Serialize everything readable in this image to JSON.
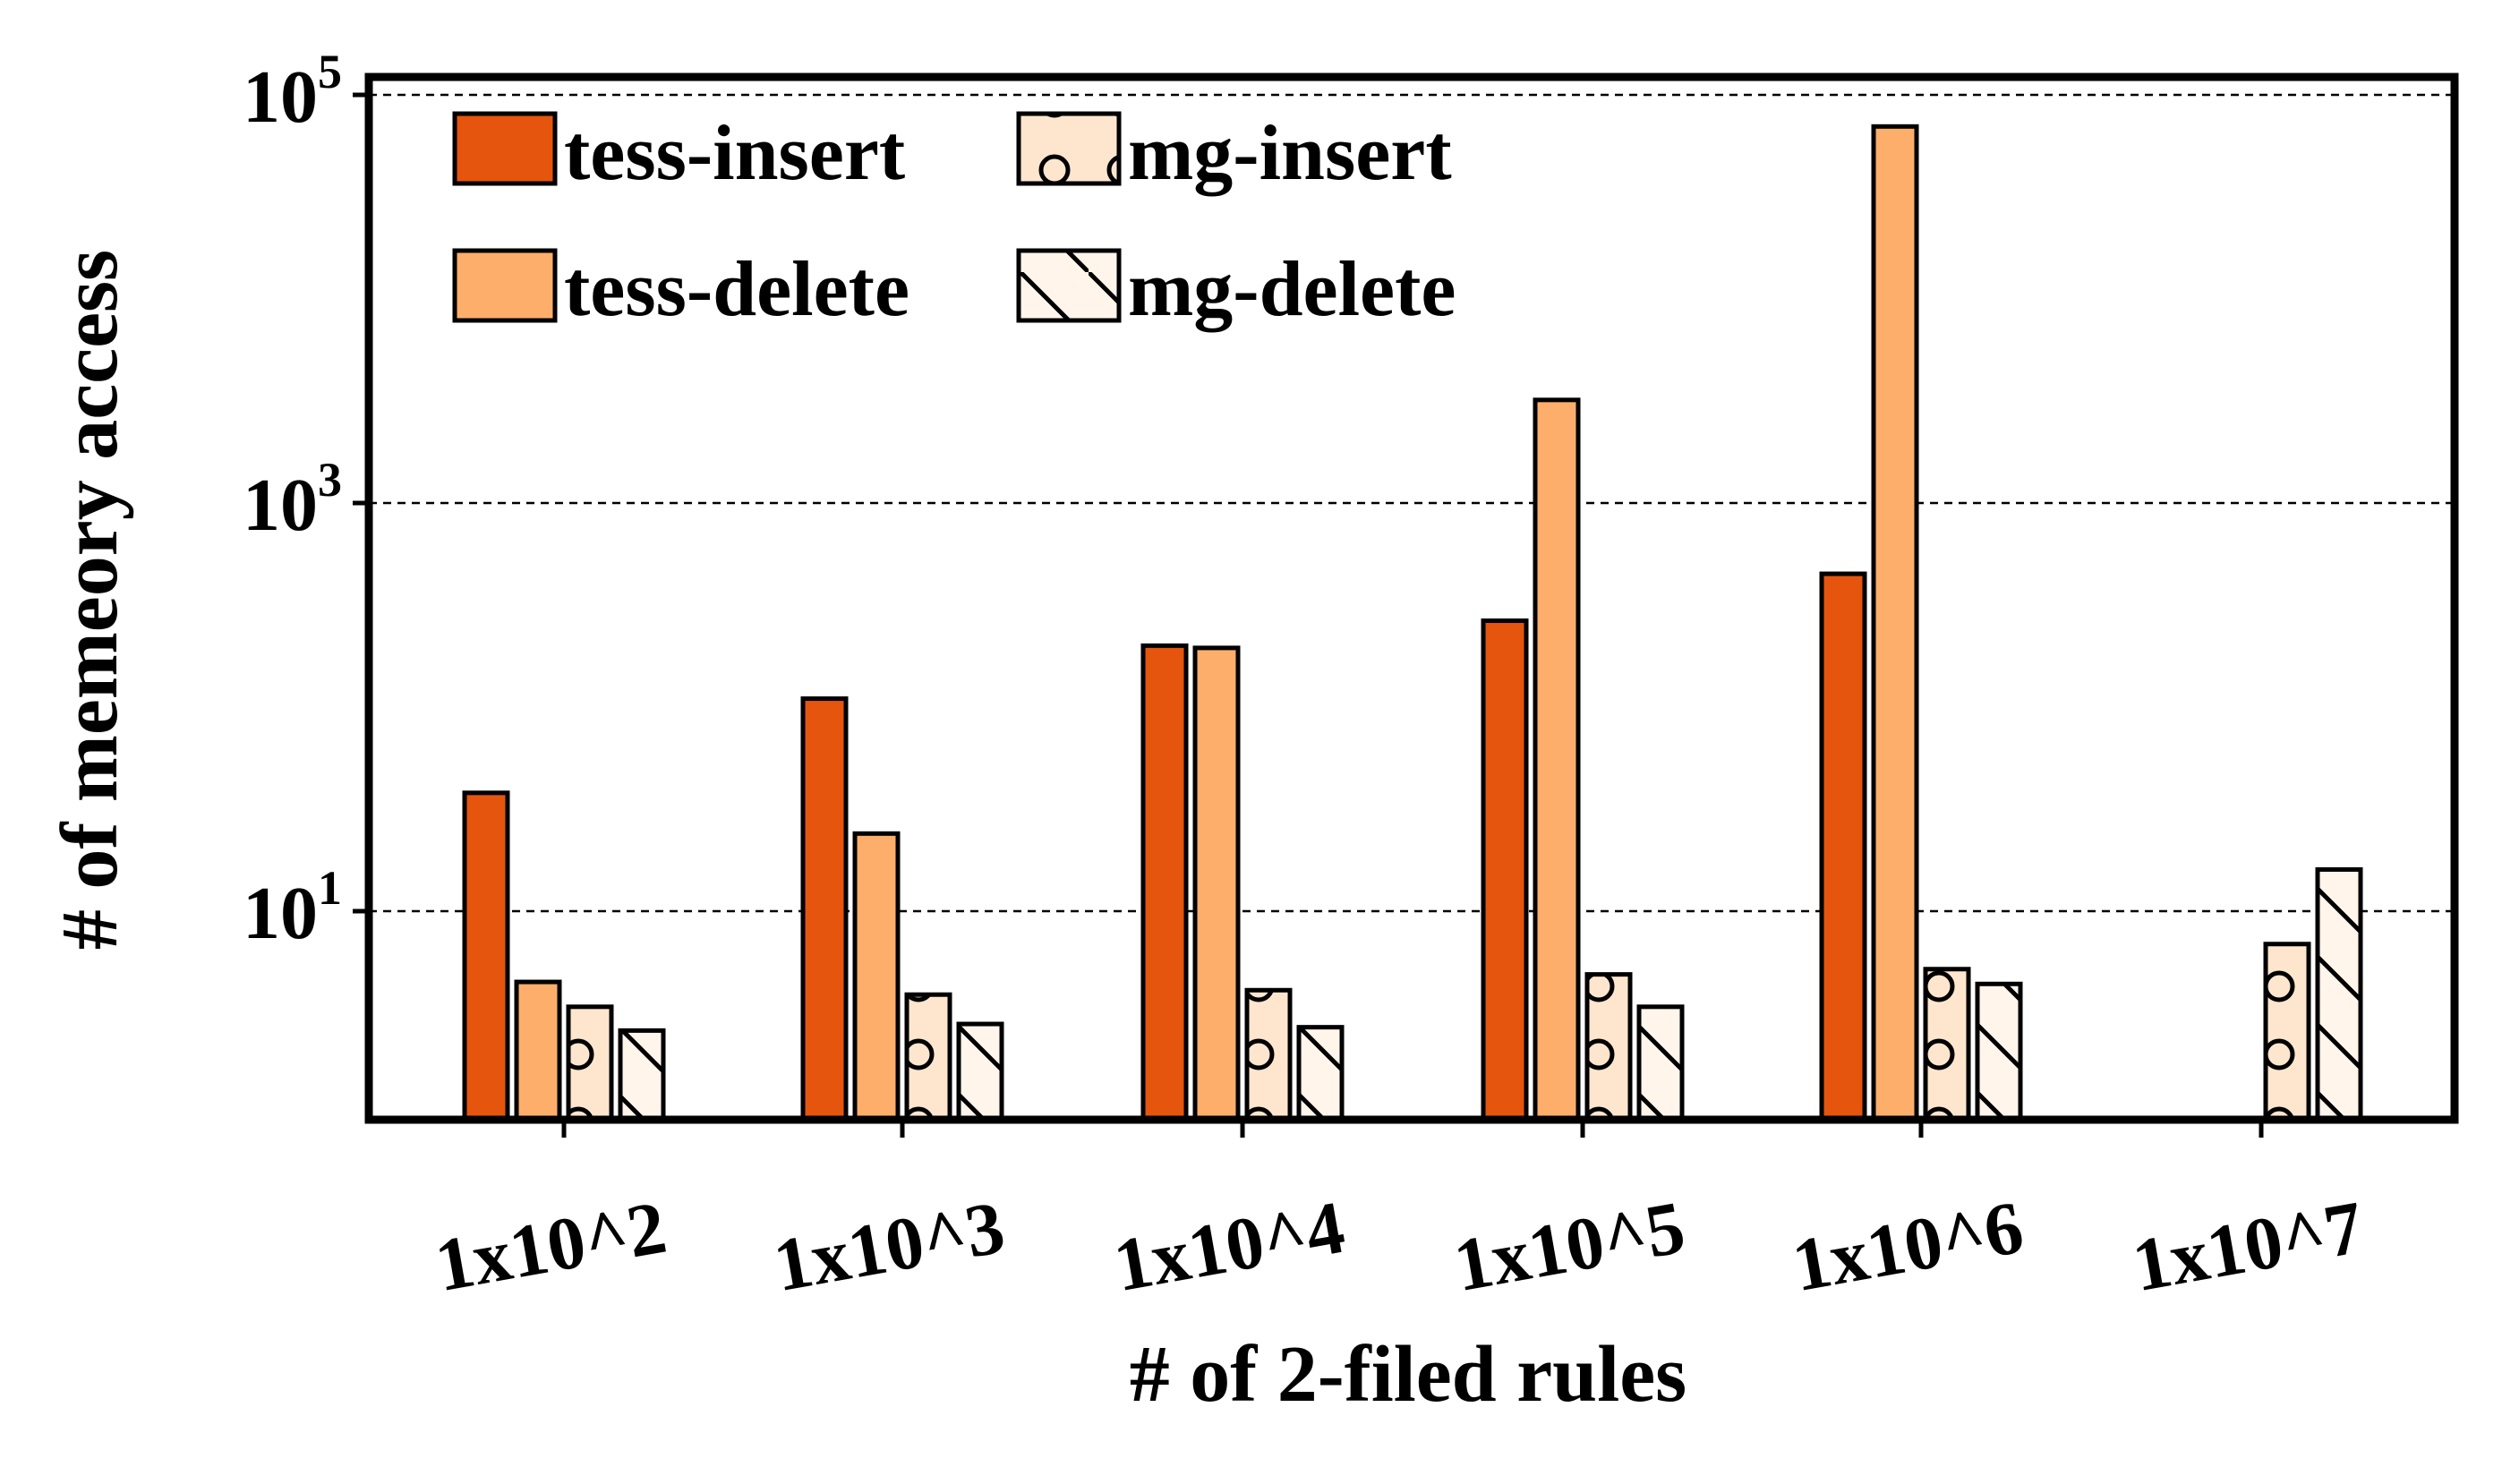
{
  "chart_data": {
    "type": "bar",
    "title": "",
    "xlabel": "# of 2-filed rules",
    "ylabel": "# of memeory access",
    "yscale": "log",
    "ylim": [
      2.1,
      100000
    ],
    "yticks": [
      {
        "value": 10,
        "base": "10",
        "exp": "1"
      },
      {
        "value": 1000,
        "base": "10",
        "exp": "3"
      },
      {
        "value": 100000,
        "base": "10",
        "exp": "5"
      }
    ],
    "grid": "horizontal dashed",
    "legend_position": "top-left",
    "categories": [
      "1x10^2",
      "1x10^3",
      "1x10^4",
      "1x10^5",
      "1x10^6",
      "1x10^7"
    ],
    "series": [
      {
        "name": "tess-insert",
        "color": "#e6550d",
        "hatch": "none",
        "values": [
          38,
          110,
          200,
          265,
          450,
          null
        ]
      },
      {
        "name": "tess-delete",
        "color": "#fdae6b",
        "hatch": "none",
        "values": [
          4.5,
          24,
          195,
          3200,
          70000,
          null
        ]
      },
      {
        "name": "mg-insert",
        "color": "#fee6ce",
        "hatch": "circles",
        "values": [
          3.4,
          3.9,
          4.1,
          4.9,
          5.2,
          6.9
        ]
      },
      {
        "name": "mg-delete",
        "color": "#fff5eb",
        "hatch": "diagonal",
        "values": [
          2.6,
          2.8,
          2.7,
          3.4,
          4.4,
          16
        ]
      }
    ]
  }
}
